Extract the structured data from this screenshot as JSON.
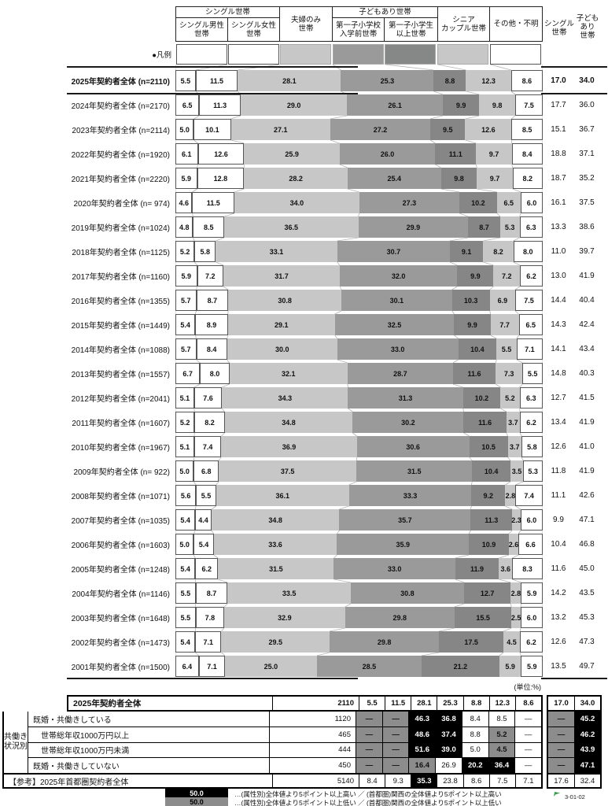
{
  "header": {
    "legend_label": "●凡例",
    "groups": [
      {
        "label": "シングル世帯"
      },
      {
        "label": "子どもあり世帯"
      }
    ],
    "columns": [
      {
        "label": "シングル男性\n世帯"
      },
      {
        "label": "シングル女性\n世帯"
      },
      {
        "label": "夫婦のみ\n世帯"
      },
      {
        "label": "第一子小学校\n入学前世帯"
      },
      {
        "label": "第一子小学生\n以上世帯"
      },
      {
        "label": "シニア\nカップル世帯"
      },
      {
        "label": "その他・不明"
      }
    ],
    "right_columns": [
      {
        "label": "シングル\n世帯"
      },
      {
        "label": "子ども\nあり\n世帯"
      }
    ]
  },
  "chart_data": {
    "type": "bar",
    "stacked": true,
    "unit_note": "(単位:%)",
    "categories": [
      "シングル男性世帯",
      "シングル女性世帯",
      "夫婦のみ世帯",
      "第一子小学校入学前世帯",
      "第一子小学生以上世帯",
      "シニアカップル世帯",
      "その他・不明"
    ],
    "column_fills": [
      "white",
      "white",
      "light",
      "dark1",
      "dark2",
      "light",
      "white"
    ],
    "colors": {
      "white": "#ffffff",
      "light": "#c7c7c7",
      "dark1": "#9a9a9a",
      "dark2": "#868787",
      "table_gray": "#8c8c8c",
      "black": "#000000"
    },
    "right_summary_columns": [
      "シングル世帯",
      "子どもあり世帯"
    ],
    "rows": [
      {
        "label": "2025年契約者全体 (n=2110)",
        "bold": true,
        "values": [
          "5.5",
          "11.5",
          "28.1",
          "25.3",
          "8.8",
          "12.3",
          "8.6"
        ],
        "single": "17.0",
        "child": "34.0"
      },
      {
        "label": "2024年契約者全体 (n=2170)",
        "bold": false,
        "values": [
          "6.5",
          "11.3",
          "29.0",
          "26.1",
          "9.9",
          "9.8",
          "7.5"
        ],
        "single": "17.7",
        "child": "36.0"
      },
      {
        "label": "2023年契約者全体 (n=2114)",
        "bold": false,
        "values": [
          "5.0",
          "10.1",
          "27.1",
          "27.2",
          "9.5",
          "12.6",
          "8.5"
        ],
        "single": "15.1",
        "child": "36.7"
      },
      {
        "label": "2022年契約者全体 (n=1920)",
        "bold": false,
        "values": [
          "6.1",
          "12.6",
          "25.9",
          "26.0",
          "11.1",
          "9.7",
          "8.4"
        ],
        "single": "18.8",
        "child": "37.1"
      },
      {
        "label": "2021年契約者全体 (n=2220)",
        "bold": false,
        "values": [
          "5.9",
          "12.8",
          "28.2",
          "25.4",
          "9.8",
          "9.7",
          "8.2"
        ],
        "single": "18.7",
        "child": "35.2"
      },
      {
        "label": "2020年契約者全体 (n= 974)",
        "bold": false,
        "values": [
          "4.6",
          "11.5",
          "34.0",
          "27.3",
          "10.2",
          "6.5",
          "6.0"
        ],
        "single": "16.1",
        "child": "37.5"
      },
      {
        "label": "2019年契約者全体 (n=1024)",
        "bold": false,
        "values": [
          "4.8",
          "8.5",
          "36.5",
          "29.9",
          "8.7",
          "5.3",
          "6.3"
        ],
        "single": "13.3",
        "child": "38.6"
      },
      {
        "label": "2018年契約者全体 (n=1125)",
        "bold": false,
        "values": [
          "5.2",
          "5.8",
          "33.1",
          "30.7",
          "9.1",
          "8.2",
          "8.0"
        ],
        "single": "11.0",
        "child": "39.7"
      },
      {
        "label": "2017年契約者全体 (n=1160)",
        "bold": false,
        "values": [
          "5.9",
          "7.2",
          "31.7",
          "32.0",
          "9.9",
          "7.2",
          "6.2"
        ],
        "single": "13.0",
        "child": "41.9"
      },
      {
        "label": "2016年契約者全体 (n=1355)",
        "bold": false,
        "values": [
          "5.7",
          "8.7",
          "30.8",
          "30.1",
          "10.3",
          "6.9",
          "7.5"
        ],
        "single": "14.4",
        "child": "40.4"
      },
      {
        "label": "2015年契約者全体 (n=1449)",
        "bold": false,
        "values": [
          "5.4",
          "8.9",
          "29.1",
          "32.5",
          "9.9",
          "7.7",
          "6.5"
        ],
        "single": "14.3",
        "child": "42.4"
      },
      {
        "label": "2014年契約者全体 (n=1088)",
        "bold": false,
        "values": [
          "5.7",
          "8.4",
          "30.0",
          "33.0",
          "10.4",
          "5.5",
          "7.1"
        ],
        "single": "14.1",
        "child": "43.4"
      },
      {
        "label": "2013年契約者全体 (n=1557)",
        "bold": false,
        "values": [
          "6.7",
          "8.0",
          "32.1",
          "28.7",
          "11.6",
          "7.3",
          "5.5"
        ],
        "single": "14.8",
        "child": "40.3"
      },
      {
        "label": "2012年契約者全体 (n=2041)",
        "bold": false,
        "values": [
          "5.1",
          "7.6",
          "34.3",
          "31.3",
          "10.2",
          "5.2",
          "6.3"
        ],
        "single": "12.7",
        "child": "41.5"
      },
      {
        "label": "2011年契約者全体 (n=1607)",
        "bold": false,
        "values": [
          "5.2",
          "8.2",
          "34.8",
          "30.2",
          "11.6",
          "3.7",
          "6.2"
        ],
        "single": "13.4",
        "child": "41.9"
      },
      {
        "label": "2010年契約者全体 (n=1967)",
        "bold": false,
        "values": [
          "5.1",
          "7.4",
          "36.9",
          "30.6",
          "10.5",
          "3.7",
          "5.8"
        ],
        "single": "12.6",
        "child": "41.0"
      },
      {
        "label": "2009年契約者全体 (n= 922)",
        "bold": false,
        "values": [
          "5.0",
          "6.8",
          "37.5",
          "31.5",
          "10.4",
          "3.5",
          "5.3"
        ],
        "single": "11.8",
        "child": "41.9"
      },
      {
        "label": "2008年契約者全体 (n=1071)",
        "bold": false,
        "values": [
          "5.6",
          "5.5",
          "36.1",
          "33.3",
          "9.2",
          "2.8",
          "7.4"
        ],
        "single": "11.1",
        "child": "42.6"
      },
      {
        "label": "2007年契約者全体 (n=1035)",
        "bold": false,
        "values": [
          "5.4",
          "4.4",
          "34.8",
          "35.7",
          "11.3",
          "2.3",
          "6.0"
        ],
        "single": "9.9",
        "child": "47.1"
      },
      {
        "label": "2006年契約者全体 (n=1603)",
        "bold": false,
        "values": [
          "5.0",
          "5.4",
          "33.6",
          "35.9",
          "10.9",
          "2.6",
          "6.6"
        ],
        "single": "10.4",
        "child": "46.8"
      },
      {
        "label": "2005年契約者全体 (n=1248)",
        "bold": false,
        "values": [
          "5.4",
          "6.2",
          "31.5",
          "33.0",
          "11.9",
          "3.6",
          "8.3"
        ],
        "single": "11.6",
        "child": "45.0"
      },
      {
        "label": "2004年契約者全体 (n=1146)",
        "bold": false,
        "values": [
          "5.5",
          "8.7",
          "33.5",
          "30.8",
          "12.7",
          "2.8",
          "5.9"
        ],
        "single": "14.2",
        "child": "43.5"
      },
      {
        "label": "2003年契約者全体 (n=1648)",
        "bold": false,
        "values": [
          "5.5",
          "7.8",
          "32.9",
          "29.8",
          "15.5",
          "2.5",
          "6.0"
        ],
        "single": "13.2",
        "child": "45.3"
      },
      {
        "label": "2002年契約者全体 (n=1473)",
        "bold": false,
        "values": [
          "5.4",
          "7.1",
          "29.5",
          "29.8",
          "17.5",
          "4.5",
          "6.2"
        ],
        "single": "12.6",
        "child": "47.3"
      },
      {
        "label": "2001年契約者全体 (n=1500)",
        "bold": false,
        "values": [
          "6.4",
          "7.1",
          "25.0",
          "28.5",
          "21.2",
          "5.9",
          "5.9"
        ],
        "single": "13.5",
        "child": "49.7"
      }
    ]
  },
  "bottom_table": {
    "group_label": "共働き\n状況別",
    "header_row": {
      "label": "2025年契約者全体",
      "n": "2110",
      "cells": [
        {
          "v": "5.5",
          "s": ""
        },
        {
          "v": "11.5",
          "s": ""
        },
        {
          "v": "28.1",
          "s": ""
        },
        {
          "v": "25.3",
          "s": ""
        },
        {
          "v": "8.8",
          "s": ""
        },
        {
          "v": "12.3",
          "s": ""
        },
        {
          "v": "8.6",
          "s": ""
        }
      ],
      "single": {
        "v": "17.0",
        "s": ""
      },
      "child": {
        "v": "34.0",
        "s": ""
      }
    },
    "rows": [
      {
        "label": "既婚・共働きしている",
        "indent": false,
        "n": "1120",
        "cells": [
          {
            "v": "—",
            "s": "g"
          },
          {
            "v": "—",
            "s": "g"
          },
          {
            "v": "46.3",
            "s": "b"
          },
          {
            "v": "36.8",
            "s": "b"
          },
          {
            "v": "8.4",
            "s": ""
          },
          {
            "v": "8.5",
            "s": ""
          },
          {
            "v": "—",
            "s": ""
          }
        ],
        "single": {
          "v": "—",
          "s": "g"
        },
        "child": {
          "v": "45.2",
          "s": "b"
        }
      },
      {
        "label": "世帯総年収1000万円以上",
        "indent": true,
        "n": "465",
        "cells": [
          {
            "v": "—",
            "s": "g"
          },
          {
            "v": "—",
            "s": "g"
          },
          {
            "v": "48.6",
            "s": "b"
          },
          {
            "v": "37.4",
            "s": "b"
          },
          {
            "v": "8.8",
            "s": ""
          },
          {
            "v": "5.2",
            "s": "g"
          },
          {
            "v": "—",
            "s": ""
          }
        ],
        "single": {
          "v": "—",
          "s": "g"
        },
        "child": {
          "v": "46.2",
          "s": "b"
        }
      },
      {
        "label": "世帯総年収1000万円未満",
        "indent": true,
        "n": "444",
        "cells": [
          {
            "v": "—",
            "s": "g"
          },
          {
            "v": "—",
            "s": "g"
          },
          {
            "v": "51.6",
            "s": "b"
          },
          {
            "v": "39.0",
            "s": "b"
          },
          {
            "v": "5.0",
            "s": ""
          },
          {
            "v": "4.5",
            "s": "g"
          },
          {
            "v": "—",
            "s": ""
          }
        ],
        "single": {
          "v": "—",
          "s": "g"
        },
        "child": {
          "v": "43.9",
          "s": "b"
        }
      },
      {
        "label": "既婚・共働きしていない",
        "indent": false,
        "n": "450",
        "cells": [
          {
            "v": "—",
            "s": "g"
          },
          {
            "v": "—",
            "s": "g"
          },
          {
            "v": "16.4",
            "s": "g"
          },
          {
            "v": "26.9",
            "s": ""
          },
          {
            "v": "20.2",
            "s": "b"
          },
          {
            "v": "36.4",
            "s": "b"
          },
          {
            "v": "—",
            "s": ""
          }
        ],
        "single": {
          "v": "—",
          "s": "g"
        },
        "child": {
          "v": "47.1",
          "s": "b"
        }
      }
    ],
    "ref_row": {
      "label": "【参考】2025年首都圏契約者全体",
      "n": "5140",
      "cells": [
        {
          "v": "8.4",
          "s": ""
        },
        {
          "v": "9.3",
          "s": ""
        },
        {
          "v": "35.3",
          "s": "b"
        },
        {
          "v": "23.8",
          "s": ""
        },
        {
          "v": "8.6",
          "s": ""
        },
        {
          "v": "7.5",
          "s": ""
        },
        {
          "v": "7.1",
          "s": ""
        }
      ],
      "single": {
        "v": "17.6",
        "s": ""
      },
      "child": {
        "v": "32.4",
        "s": ""
      }
    },
    "notes": [
      {
        "swatch": "50.0",
        "style": "b",
        "text": "…(属性別)全体値より5ポイント以上高い ／ (首都圏)関西の全体値より5ポイント以上高い"
      },
      {
        "swatch": "50.0",
        "style": "g",
        "text": "…(属性別)全体値より5ポイント以上低い ／ (首都圏)関西の全体値より5ポイント以上低い"
      }
    ]
  },
  "page_code": "3-01-02"
}
